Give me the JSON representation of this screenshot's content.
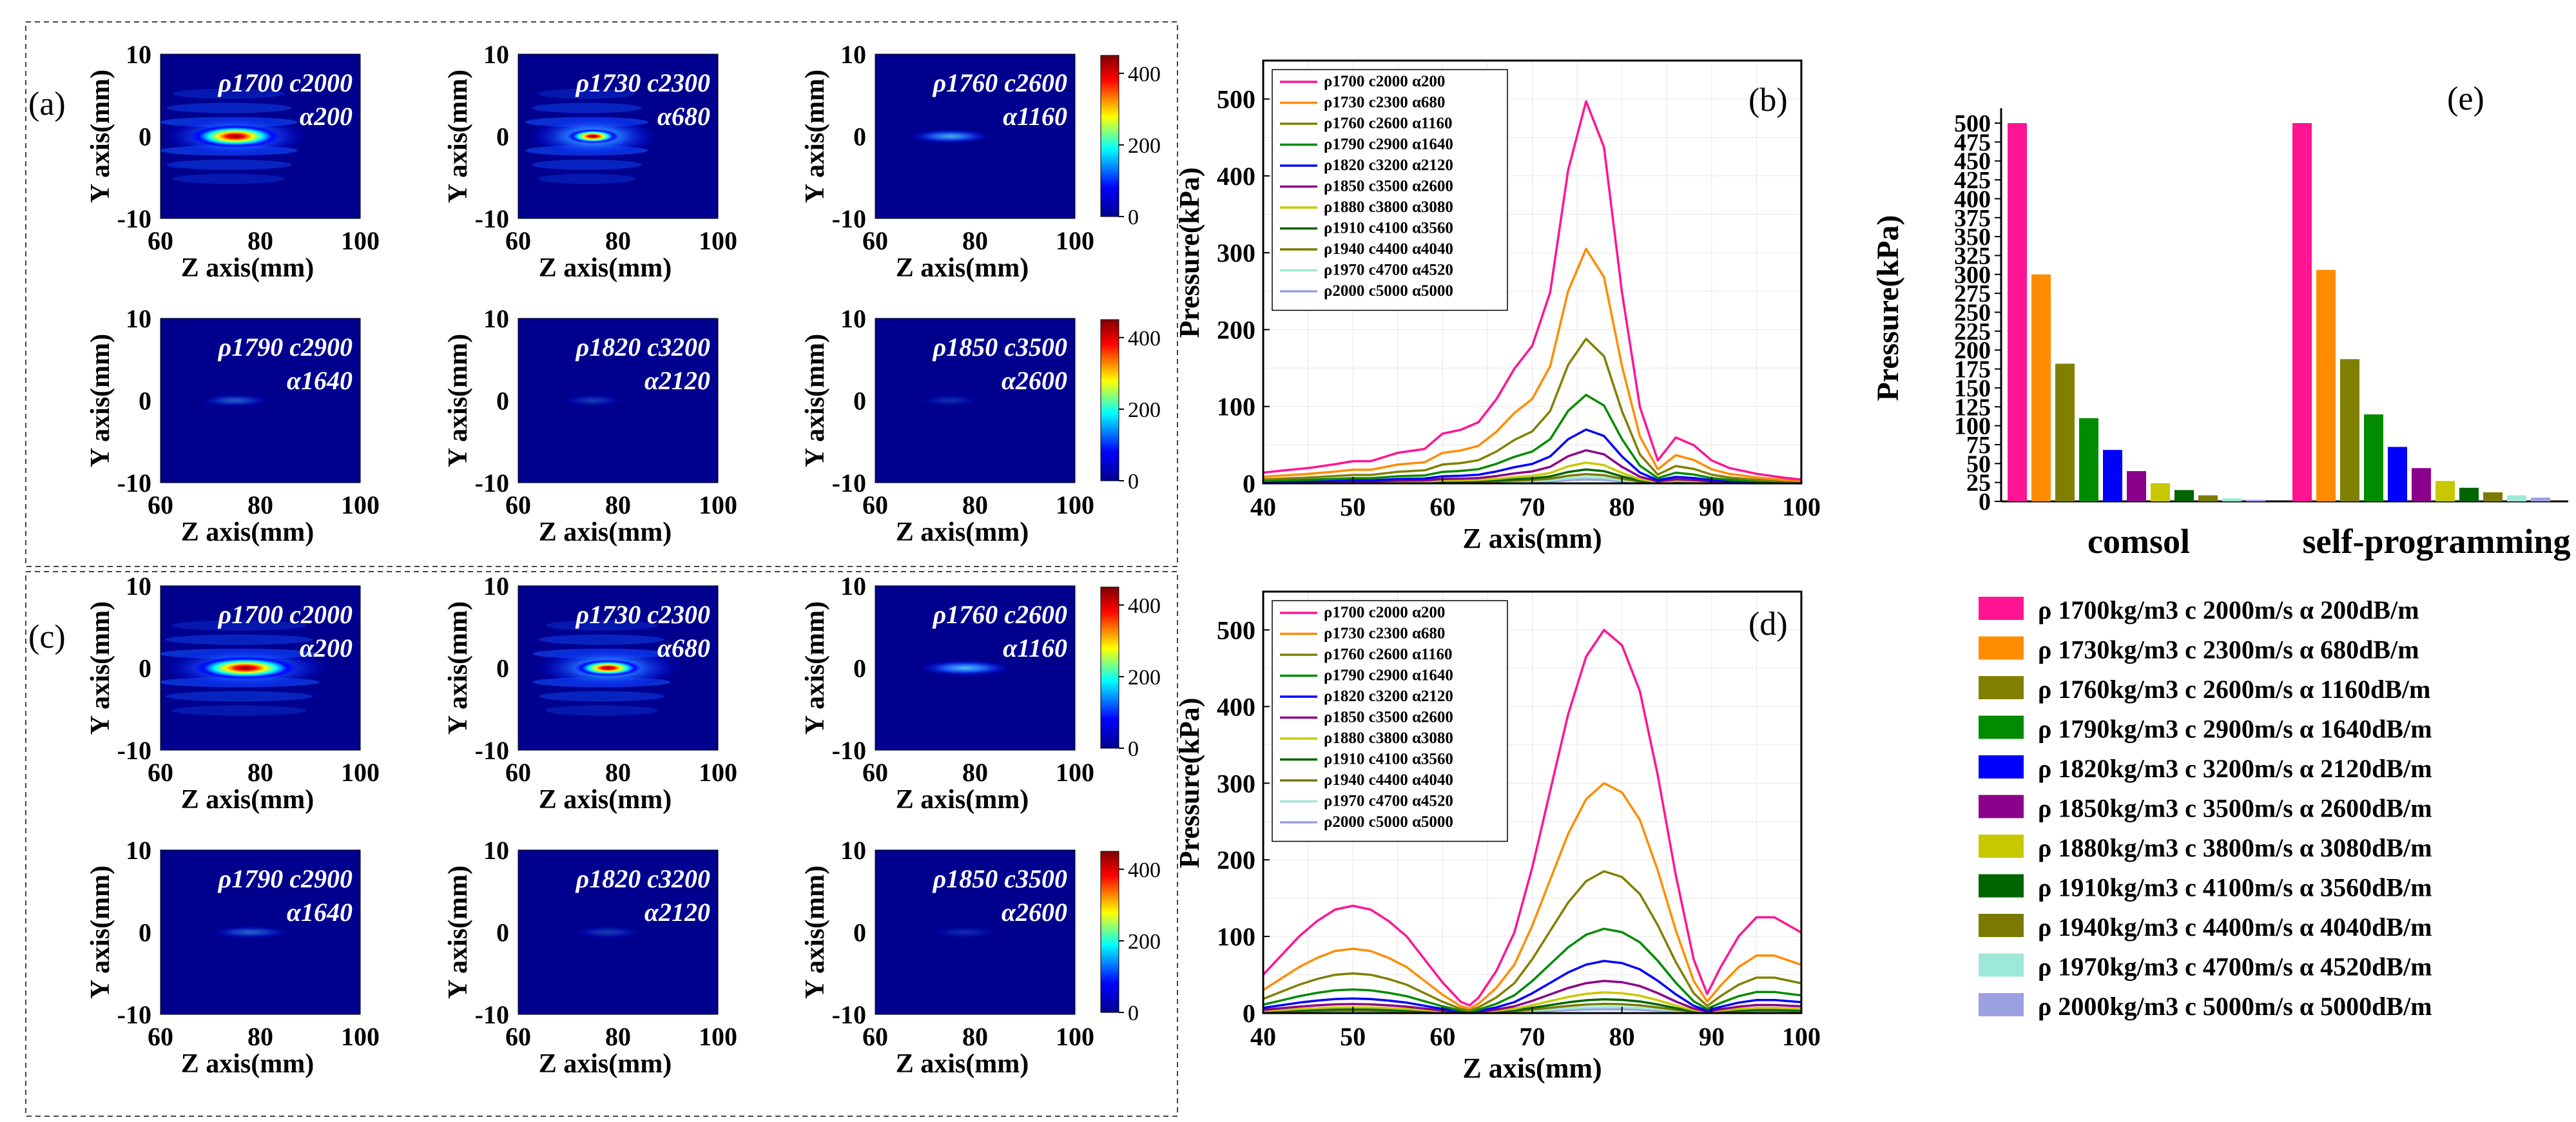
{
  "colors": {
    "series": [
      "#ff1493",
      "#ff8c00",
      "#808000",
      "#008b00",
      "#0000ff",
      "#8b008b",
      "#c8c800",
      "#006400",
      "#7a7a00",
      "#9ee8d8",
      "#9aa0e0"
    ],
    "jet": [
      "#00008f",
      "#0000ff",
      "#00ffff",
      "#ffff00",
      "#ff0000",
      "#800000"
    ]
  },
  "panel_letters": [
    "(a)",
    "(b)",
    "(c)",
    "(d)",
    "(e)"
  ],
  "heatmap_axes": {
    "ylabel": "Y axis(mm)",
    "xlabel": "Z axis(mm)",
    "xticks": [
      "60",
      "80",
      "100"
    ],
    "yticks": [
      "10",
      "0",
      "-10"
    ]
  },
  "colorbar_ticks": [
    "400",
    "200",
    "0"
  ],
  "heatmaps": [
    {
      "panel": "a",
      "line1": "ρ1700 c2000",
      "line2": "α200",
      "peak": 450,
      "intensity": 1.0,
      "spot_width": 1.0,
      "spot_z": 75,
      "fringes": true
    },
    {
      "panel": "a",
      "line1": "ρ1730 c2300",
      "line2": "α680",
      "peak": 300,
      "intensity": 0.62,
      "spot_width": 0.9,
      "spot_z": 75,
      "fringes": true
    },
    {
      "panel": "a",
      "line1": "ρ1760 c2600",
      "line2": "α1160",
      "peak": 190,
      "intensity": 0.45,
      "spot_width": 0.8,
      "spot_z": 75,
      "fringes": false
    },
    {
      "panel": "a",
      "line1": "ρ1790 c2900",
      "line2": "α1640",
      "peak": 115,
      "intensity": 0.25,
      "spot_width": 0.7,
      "spot_z": 75,
      "fringes": false
    },
    {
      "panel": "a",
      "line1": "ρ1820 c3200",
      "line2": "α2120",
      "peak": 70,
      "intensity": 0.16,
      "spot_width": 0.6,
      "spot_z": 75,
      "fringes": false
    },
    {
      "panel": "a",
      "line1": "ρ1850 c3500",
      "line2": "α2600",
      "peak": 42,
      "intensity": 0.12,
      "spot_width": 0.6,
      "spot_z": 75,
      "fringes": false
    },
    {
      "panel": "c",
      "line1": "ρ1700 c2000",
      "line2": "α200",
      "peak": 500,
      "intensity": 1.0,
      "spot_width": 1.15,
      "spot_z": 77,
      "fringes": true
    },
    {
      "panel": "c",
      "line1": "ρ1730 c2300",
      "line2": "α680",
      "peak": 300,
      "intensity": 0.72,
      "spot_width": 1.0,
      "spot_z": 78,
      "fringes": true
    },
    {
      "panel": "c",
      "line1": "ρ1760 c2600",
      "line2": "α1160",
      "peak": 185,
      "intensity": 0.5,
      "spot_width": 0.9,
      "spot_z": 78,
      "fringes": false
    },
    {
      "panel": "c",
      "line1": "ρ1790 c2900",
      "line2": "α1640",
      "peak": 110,
      "intensity": 0.26,
      "spot_width": 0.8,
      "spot_z": 78,
      "fringes": false
    },
    {
      "panel": "c",
      "line1": "ρ1820 c3200",
      "line2": "α2120",
      "peak": 68,
      "intensity": 0.16,
      "spot_width": 0.7,
      "spot_z": 78,
      "fringes": false
    },
    {
      "panel": "c",
      "line1": "ρ1850 c3500",
      "line2": "α2600",
      "peak": 42,
      "intensity": 0.12,
      "spot_width": 0.7,
      "spot_z": 78,
      "fringes": false
    }
  ],
  "chart_data": [
    {
      "panel": "b",
      "type": "line",
      "xlabel": "Z axis(mm)",
      "ylabel": "Pressure(kPa)",
      "xlim": [
        40,
        100
      ],
      "ylim": [
        0,
        550
      ],
      "xticks": [
        40,
        50,
        60,
        70,
        80,
        90,
        100
      ],
      "yticks": [
        0,
        100,
        200,
        300,
        400,
        500
      ],
      "grid": true,
      "legend_position": "top-left",
      "x": [
        40,
        42,
        45,
        48,
        50,
        52,
        55,
        58,
        60,
        62,
        64,
        66,
        68,
        70,
        72,
        74,
        76,
        78,
        80,
        82,
        84,
        86,
        88,
        90,
        92,
        95,
        98,
        100
      ],
      "shape": [
        0.028,
        0.033,
        0.04,
        0.05,
        0.058,
        0.058,
        0.08,
        0.09,
        0.13,
        0.14,
        0.16,
        0.22,
        0.3,
        0.36,
        0.5,
        0.82,
        1.0,
        0.88,
        0.5,
        0.2,
        0.06,
        0.12,
        0.1,
        0.06,
        0.04,
        0.025,
        0.015,
        0.01
      ],
      "series": [
        {
          "name": "ρ1700 c2000 α200",
          "peak": 497
        },
        {
          "name": "ρ1730 c2300 α680",
          "peak": 305
        },
        {
          "name": "ρ1760 c2600 α1160",
          "peak": 188
        },
        {
          "name": "ρ1790 c2900 α1640",
          "peak": 115
        },
        {
          "name": "ρ1820 c3200 α2120",
          "peak": 70
        },
        {
          "name": "ρ1850 c3500 α2600",
          "peak": 43
        },
        {
          "name": "ρ1880 c3800 α3080",
          "peak": 27
        },
        {
          "name": "ρ1910 c4100 α3560",
          "peak": 18
        },
        {
          "name": "ρ1940 c4400 α4040",
          "peak": 12
        },
        {
          "name": "ρ1970 c4700 α4520",
          "peak": 8
        },
        {
          "name": "ρ2000 c5000 α5000",
          "peak": 5
        }
      ]
    },
    {
      "panel": "d",
      "type": "line",
      "xlabel": "Z axis(mm)",
      "ylabel": "Pressure(kPa)",
      "xlim": [
        40,
        100
      ],
      "ylim": [
        0,
        550
      ],
      "xticks": [
        40,
        50,
        60,
        70,
        80,
        90,
        100
      ],
      "yticks": [
        0,
        100,
        200,
        300,
        400,
        500
      ],
      "grid": true,
      "legend_position": "top-left",
      "x": [
        40,
        42,
        44,
        46,
        48,
        50,
        52,
        54,
        56,
        58,
        60,
        62,
        63,
        64,
        66,
        68,
        70,
        72,
        74,
        76,
        78,
        80,
        82,
        84,
        86,
        88,
        89.5,
        91,
        93,
        95,
        97,
        100
      ],
      "shape": [
        0.1,
        0.15,
        0.2,
        0.24,
        0.27,
        0.28,
        0.27,
        0.24,
        0.2,
        0.14,
        0.08,
        0.03,
        0.02,
        0.04,
        0.11,
        0.21,
        0.38,
        0.58,
        0.78,
        0.93,
        1.0,
        0.96,
        0.84,
        0.62,
        0.36,
        0.14,
        0.05,
        0.12,
        0.2,
        0.25,
        0.25,
        0.21
      ],
      "series": [
        {
          "name": "ρ1700 c2000 α200",
          "peak": 500
        },
        {
          "name": "ρ1730 c2300 α680",
          "peak": 300
        },
        {
          "name": "ρ1760 c2600 α1160",
          "peak": 185
        },
        {
          "name": "ρ1790 c2900 α1640",
          "peak": 110
        },
        {
          "name": "ρ1820 c3200 α2120",
          "peak": 68
        },
        {
          "name": "ρ1850 c3500 α2600",
          "peak": 42
        },
        {
          "name": "ρ1880 c3800 α3080",
          "peak": 27
        },
        {
          "name": "ρ1910 c4100 α3560",
          "peak": 18
        },
        {
          "name": "ρ1940 c4400 α4040",
          "peak": 12
        },
        {
          "name": "ρ1970 c4700 α4520",
          "peak": 8
        },
        {
          "name": "ρ2000 c5000 α5000",
          "peak": 5
        }
      ]
    },
    {
      "panel": "e",
      "type": "bar",
      "ylabel": "Pressure(kPa)",
      "ylim": [
        0,
        500
      ],
      "yticks": [
        0,
        25,
        50,
        75,
        100,
        125,
        150,
        175,
        200,
        225,
        250,
        275,
        300,
        325,
        350,
        375,
        400,
        425,
        450,
        475,
        500
      ],
      "categories": [
        "comsol",
        "self-programming"
      ],
      "legend_position": "bottom",
      "series": [
        {
          "name": "ρ 1700kg/m3 c 2000m/s α 200dB/m",
          "values": [
            500,
            500
          ]
        },
        {
          "name": "ρ 1730kg/m3 c 2300m/s α 680dB/m",
          "values": [
            300,
            306
          ]
        },
        {
          "name": "ρ 1760kg/m3 c 2600m/s α 1160dB/m",
          "values": [
            182,
            188
          ]
        },
        {
          "name": "ρ 1790kg/m3 c 2900m/s α 1640dB/m",
          "values": [
            110,
            115
          ]
        },
        {
          "name": "ρ 1820kg/m3 c 3200m/s α 2120dB/m",
          "values": [
            68,
            72
          ]
        },
        {
          "name": "ρ 1850kg/m3 c 3500m/s α 2600dB/m",
          "values": [
            40,
            44
          ]
        },
        {
          "name": "ρ 1880kg/m3 c 3800m/s α 3080dB/m",
          "values": [
            24,
            27
          ]
        },
        {
          "name": "ρ 1910kg/m3 c 4100m/s α 3560dB/m",
          "values": [
            15,
            18
          ]
        },
        {
          "name": "ρ 1940kg/m3 c 4400m/s α 4040dB/m",
          "values": [
            8,
            12
          ]
        },
        {
          "name": "ρ 1970kg/m3 c 4700m/s α 4520dB/m",
          "values": [
            4,
            8
          ]
        },
        {
          "name": "ρ 2000kg/m3 c 5000m/s α 5000dB/m",
          "values": [
            2,
            5
          ]
        }
      ]
    }
  ]
}
